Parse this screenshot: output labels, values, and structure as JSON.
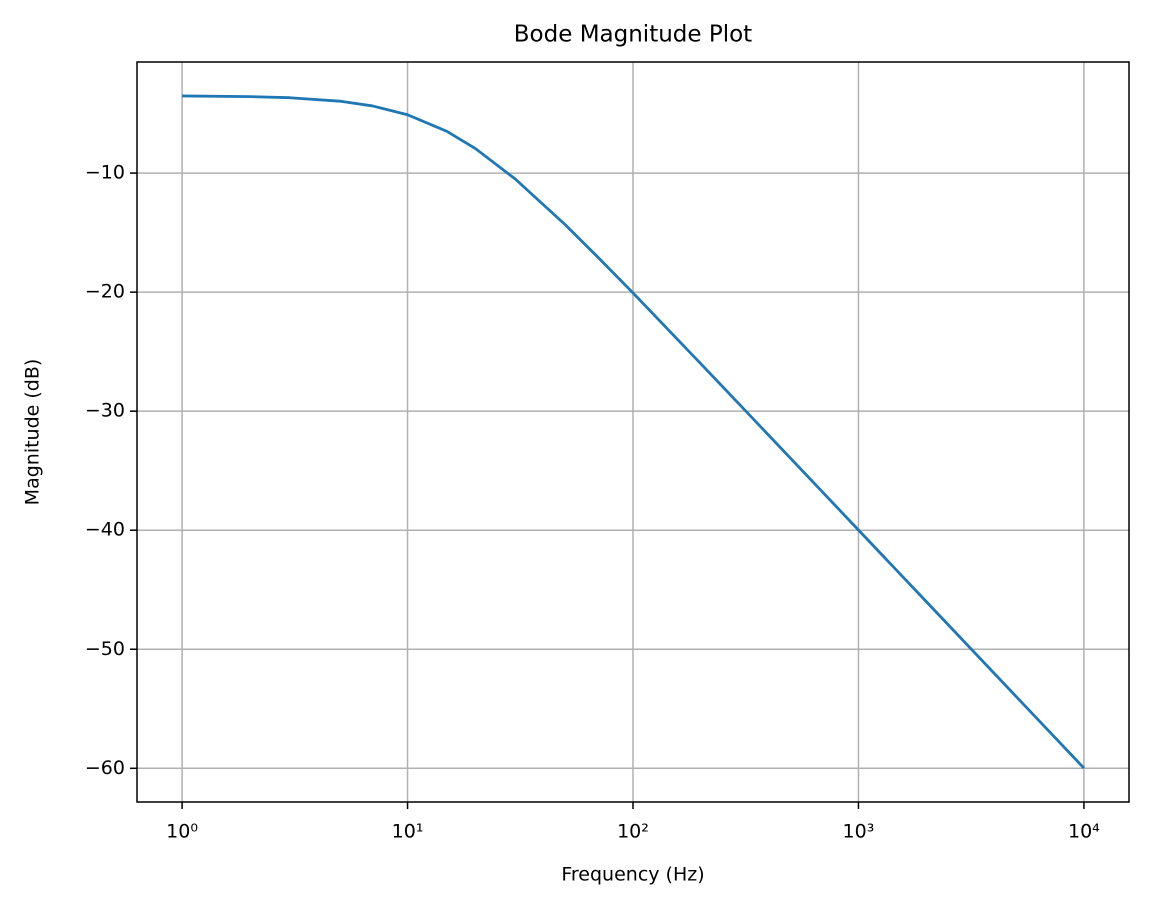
{
  "chart_data": {
    "type": "line",
    "title": "Bode Magnitude Plot",
    "x_label": "Frequency (Hz)",
    "y_label": "Magnitude (dB)",
    "x_scale": "log",
    "grid": true,
    "x": [
      1,
      2,
      3,
      5,
      7,
      10,
      15,
      20,
      30,
      50,
      70,
      100,
      200,
      300,
      500,
      1000,
      2000,
      5000,
      10000
    ],
    "series": [
      {
        "name": "Magnitude",
        "color": "#1f77b4",
        "values": [
          -3.52,
          -3.58,
          -3.67,
          -3.96,
          -4.36,
          -5.1,
          -6.51,
          -7.94,
          -10.49,
          -14.33,
          -17.08,
          -20.07,
          -26.02,
          -29.53,
          -33.96,
          -39.98,
          -46.0,
          -53.96,
          -59.98
        ]
      }
    ],
    "xlim": [
      0.631,
      15849
    ],
    "ylim": [
      -62.83,
      -0.67
    ],
    "xticks": [
      {
        "value": 1,
        "label": "10⁰"
      },
      {
        "value": 10,
        "label": "10¹"
      },
      {
        "value": 100,
        "label": "10²"
      },
      {
        "value": 1000,
        "label": "10³"
      },
      {
        "value": 10000,
        "label": "10⁴"
      }
    ],
    "yticks": [
      {
        "value": -60,
        "label": "−60"
      },
      {
        "value": -50,
        "label": "−50"
      },
      {
        "value": -40,
        "label": "−40"
      },
      {
        "value": -30,
        "label": "−30"
      },
      {
        "value": -20,
        "label": "−20"
      },
      {
        "value": -10,
        "label": "−10"
      }
    ]
  }
}
